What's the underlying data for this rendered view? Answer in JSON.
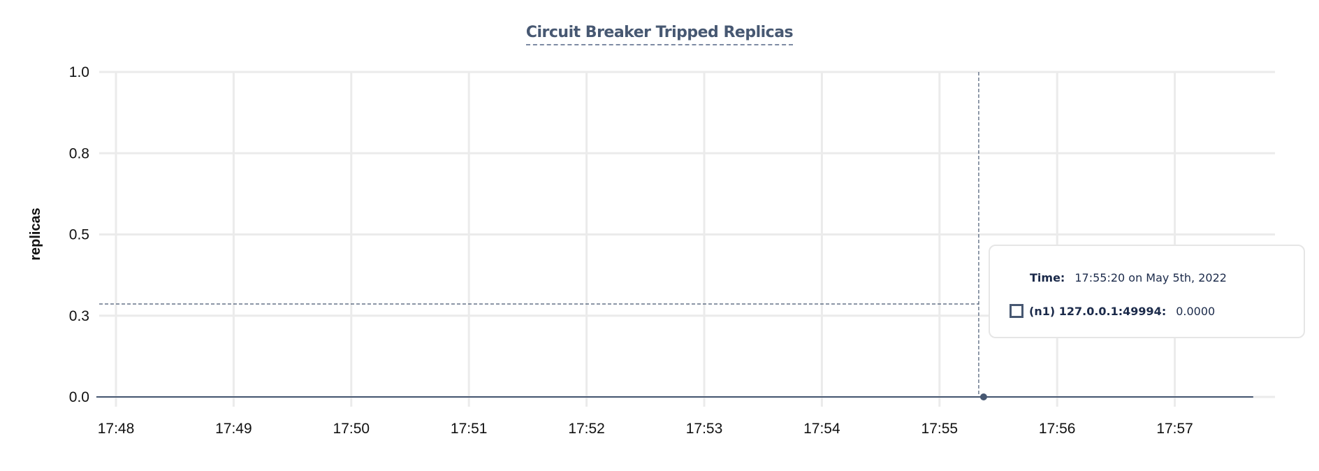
{
  "chart_data": {
    "type": "line",
    "title": "Circuit Breaker Tripped Replicas",
    "ylabel": "replicas",
    "xlabel": "",
    "ylim": [
      0,
      1
    ],
    "y_ticks": [
      "0.0",
      "0.3",
      "0.5",
      "0.8",
      "1.0"
    ],
    "x_ticks": [
      "17:48",
      "17:49",
      "17:50",
      "17:51",
      "17:52",
      "17:53",
      "17:54",
      "17:55",
      "17:56",
      "17:57"
    ],
    "xlim": [
      "17:47:50",
      "17:58:00"
    ],
    "grid": true,
    "series": [
      {
        "name": "(n1) 127.0.0.1:49994",
        "color": "#475872",
        "x": [
          "17:47:50",
          "17:57:40"
        ],
        "y": [
          0,
          0
        ]
      }
    ],
    "hover": {
      "x": "17:55:20",
      "y": 0
    }
  },
  "tooltip": {
    "time_label": "Time:",
    "time_value": "17:55:20 on May 5th, 2022",
    "series_label": "(n1) 127.0.0.1:49994:",
    "series_value": "0.0000"
  }
}
